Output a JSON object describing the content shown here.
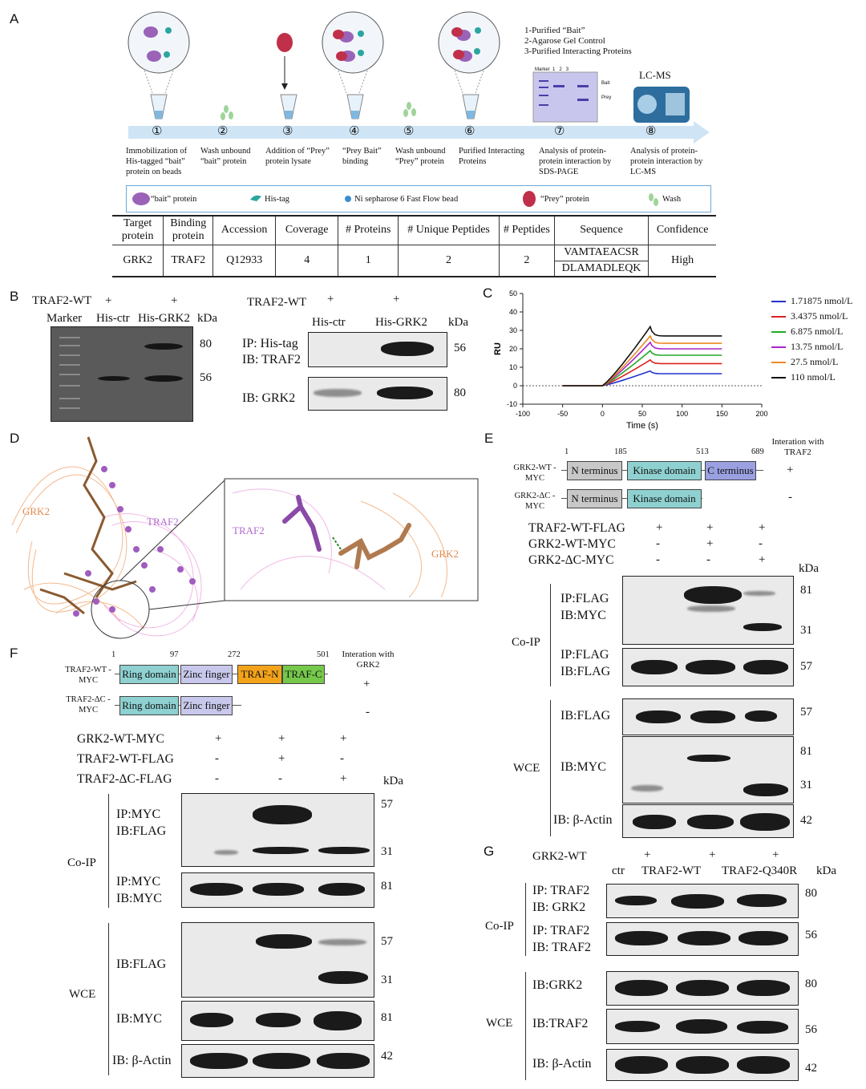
{
  "panelA": {
    "label": "A",
    "notes": [
      "1-Purified “Bait”",
      "2-Agarose Gel Control",
      "3-Purified Interacting Proteins"
    ],
    "gel_lanes": [
      "Marker",
      "1",
      "2",
      "3"
    ],
    "gel_bands": [
      "Bait",
      "Prey"
    ],
    "lcms": "LC-MS",
    "steps": [
      {
        "num": "①",
        "text": "Immobilization of His-tagged “bait” protein on beads"
      },
      {
        "num": "②",
        "text": "Wash unbound “bait” protein"
      },
      {
        "num": "③",
        "text": "Addition of “Prey” protein lysate"
      },
      {
        "num": "④",
        "text": "“Prey Bait” binding"
      },
      {
        "num": "⑤",
        "text": "Wash unbound “Prey” protein"
      },
      {
        "num": "⑥",
        "text": "Purified Interacting Proteins"
      },
      {
        "num": "⑦",
        "text": "Analysis of protein-protein interaction by SDS-PAGE"
      },
      {
        "num": "⑧",
        "text": "Analysis of protein-protein interaction by LC-MS"
      }
    ],
    "legend": [
      "“bait” protein",
      "His-tag",
      "Ni sepharose 6 Fast Flow bead",
      "“Prey” protein",
      "Wash"
    ],
    "table": {
      "headers": [
        "Target protein",
        "Binding protein",
        "Accession",
        "Coverage",
        "# Proteins",
        "# Unique Peptides",
        "# Peptides",
        "Sequence",
        "Confidence"
      ],
      "row": [
        "GRK2",
        "TRAF2",
        "Q12933",
        "4",
        "1",
        "2",
        "2"
      ],
      "sequences": [
        "VAMTAEACSR",
        "DLAMADLEQK"
      ],
      "confidence": "High"
    }
  },
  "panelB": {
    "label": "B",
    "gel": {
      "traf2": "TRAF2-WT",
      "plus1": "+",
      "plus2": "+",
      "lanes": [
        "Marker",
        "His-ctr",
        "His-GRK2"
      ],
      "kda": "kDa",
      "mw": [
        "80",
        "56"
      ]
    },
    "blot": {
      "traf2": "TRAF2-WT",
      "plus1": "+",
      "plus2": "+",
      "lanes": [
        "His-ctr",
        "His-GRK2"
      ],
      "kda": "kDa",
      "rows": [
        {
          "label1": "IP: His-tag",
          "label2": "IB: TRAF2",
          "mw": "56"
        },
        {
          "label1": "IB: GRK2",
          "mw": "80"
        }
      ]
    }
  },
  "panelC": {
    "label": "C",
    "chart_data": {
      "type": "line",
      "xlabel": "Time (s)",
      "ylabel": "RU",
      "xlim": [
        -100,
        200
      ],
      "ylim": [
        -10,
        50
      ],
      "xticks": [
        -100,
        -50,
        0,
        50,
        100,
        150,
        200
      ],
      "yticks": [
        -10,
        0,
        10,
        20,
        30,
        40,
        50
      ],
      "baseline_dotted": true,
      "legend_position": "right",
      "series": [
        {
          "name": "1.71875 nmol/L",
          "color": "#2233cc",
          "peak": 8,
          "plateau": 6.5
        },
        {
          "name": "3.4375 nmol/L",
          "color": "#dd2222",
          "peak": 14,
          "plateau": 12
        },
        {
          "name": "6.875 nmol/L",
          "color": "#22aa22",
          "peak": 19,
          "plateau": 16.5
        },
        {
          "name": "13.75 nmol/L",
          "color": "#aa22cc",
          "peak": 23.5,
          "plateau": 20
        },
        {
          "name": "27.5 nmol/L",
          "color": "#ee8822",
          "peak": 27,
          "plateau": 23
        },
        {
          "name": "110 nmol/L",
          "color": "#111111",
          "peak": 32,
          "plateau": 27
        }
      ],
      "association_start": 0,
      "dissociation_start": 60,
      "end": 150,
      "pre_start": -50
    }
  },
  "panelD": {
    "label": "D",
    "labels": [
      "GRK2",
      "TRAF2",
      "TRAF2",
      "GRK2"
    ]
  },
  "panelE": {
    "label": "E",
    "positions": [
      "1",
      "185",
      "513",
      "689"
    ],
    "interaction_header": "Interation with TRAF2",
    "constructs": [
      {
        "name": "GRK2-WT -MYC",
        "result": "+"
      },
      {
        "name": "GRK2-ΔC -MYC",
        "result": "-"
      }
    ],
    "domains": [
      "N terminus",
      "Kinase domain",
      "C terminus"
    ],
    "conditions": [
      {
        "name": "TRAF2-WT-FLAG",
        "vals": [
          "+",
          "+",
          "+"
        ]
      },
      {
        "name": "GRK2-WT-MYC",
        "vals": [
          "-",
          "+",
          "-"
        ]
      },
      {
        "name": "GRK2-ΔC-MYC",
        "vals": [
          "-",
          "-",
          "+"
        ]
      }
    ],
    "kda": "kDa",
    "group_coip": "Co-IP",
    "group_wce": "WCE",
    "blots": [
      {
        "l1": "IP:FLAG",
        "l2": "IB:MYC",
        "mw": [
          "81",
          "31"
        ]
      },
      {
        "l1": "IP:FLAG",
        "l2": "IB:FLAG",
        "mw": [
          "57"
        ]
      },
      {
        "l1": "IB:FLAG",
        "mw": [
          "57"
        ]
      },
      {
        "l1": "IB:MYC",
        "mw": [
          "81",
          "31"
        ]
      },
      {
        "l1": "IB: β-Actin",
        "mw": [
          "42"
        ]
      }
    ]
  },
  "panelF": {
    "label": "F",
    "positions": [
      "1",
      "97",
      "272",
      "501"
    ],
    "interaction_header": "Interation with GRK2",
    "constructs": [
      {
        "name": "TRAF2-WT -MYC",
        "result": "+"
      },
      {
        "name": "TRAF2-ΔC -MYC",
        "result": "-"
      }
    ],
    "domains": [
      "Ring domain",
      "Zinc finger",
      "TRAF-N",
      "TRAF-C"
    ],
    "conditions": [
      {
        "name": "GRK2-WT-MYC",
        "vals": [
          "+",
          "+",
          "+"
        ]
      },
      {
        "name": "TRAF2-WT-FLAG",
        "vals": [
          "-",
          "+",
          "-"
        ]
      },
      {
        "name": "TRAF2-ΔC-FLAG",
        "vals": [
          "-",
          "-",
          "+"
        ]
      }
    ],
    "kda": "kDa",
    "group_coip": "Co-IP",
    "group_wce": "WCE",
    "blots": [
      {
        "l1": "IP:MYC",
        "l2": "IB:FLAG",
        "mw": [
          "57",
          "31"
        ]
      },
      {
        "l1": "IP:MYC",
        "l2": "IB:MYC",
        "mw": [
          "81"
        ]
      },
      {
        "l1": "IB:FLAG",
        "mw": [
          "57",
          "31"
        ]
      },
      {
        "l1": "IB:MYC",
        "mw": [
          "81"
        ]
      },
      {
        "l1": "IB: β-Actin",
        "mw": [
          "42"
        ]
      }
    ]
  },
  "panelG": {
    "label": "G",
    "grk2": "GRK2-WT",
    "plus": [
      "+",
      "+",
      "+"
    ],
    "lanes": [
      "ctr",
      "TRAF2-WT",
      "TRAF2-Q340R"
    ],
    "kda": "kDa",
    "group_coip": "Co-IP",
    "group_wce": "WCE",
    "blots": [
      {
        "l1": "IP: TRAF2",
        "l2": "IB: GRK2",
        "mw": "80"
      },
      {
        "l1": "IP: TRAF2",
        "l2": "IB: TRAF2",
        "mw": "56"
      },
      {
        "l1": "IB:GRK2",
        "mw": "80"
      },
      {
        "l1": "IB:TRAF2",
        "mw": "56"
      },
      {
        "l1": "IB: β-Actin",
        "mw": "42"
      }
    ]
  }
}
